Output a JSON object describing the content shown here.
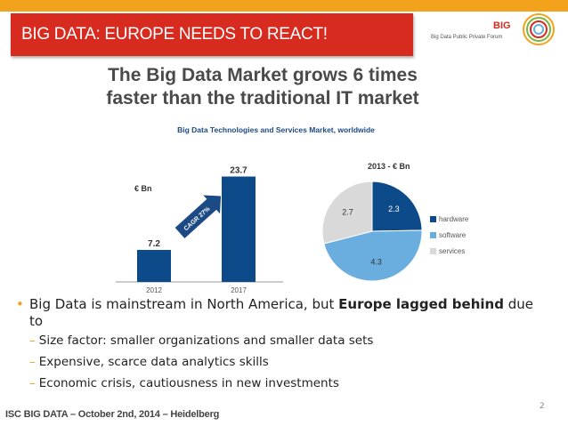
{
  "slide": {
    "title": "BIG DATA: EUROPE NEEDS TO REACT!",
    "logo_name": "BIG",
    "logo_subtitle": "Big Data Public Private Forum",
    "headline_line1": "The Big Data Market grows 6 times",
    "headline_line2": "faster than the traditional IT market",
    "chart_subtitle": "Big Data Technologies and Services Market, worldwide",
    "page_number": "2",
    "footer": "ISC BIG DATA – October 2nd, 2014 – Heidelberg"
  },
  "bullets": {
    "main_text_plain": "Big Data is mainstream in North America, but ",
    "main_text_bold": "Europe lagged behind",
    "main_text_tail": " due to",
    "sub_items": [
      "Size factor: smaller organizations and smaller data sets",
      "Expensive, scarce data analytics skills",
      "Economic crisis, cautiousness in new investments"
    ]
  },
  "colors": {
    "top_bar": "#f3a21b",
    "title_banner": "#d72b1f",
    "hardware": "#0d4a8a",
    "software": "#6aaddf",
    "services": "#d9d9d9"
  },
  "chart_data": [
    {
      "type": "bar",
      "unit_label": "€ Bn",
      "categories": [
        "2012",
        "2017"
      ],
      "values": [
        7.2,
        23.7
      ],
      "value_labels": [
        "7.2",
        "23.7"
      ],
      "ylim": [
        0,
        25
      ],
      "annotation": "CAGR 27%",
      "color": "#0d4a8a"
    },
    {
      "type": "pie",
      "title": "2013 - € Bn",
      "slices": [
        {
          "name": "hardware",
          "value": 2.3,
          "label": "2.3",
          "color": "#0d4a8a"
        },
        {
          "name": "software",
          "value": 4.3,
          "label": "4.3",
          "color": "#6aaddf"
        },
        {
          "name": "services",
          "value": 2.7,
          "label": "2.7",
          "color": "#d9d9d9"
        }
      ]
    }
  ]
}
